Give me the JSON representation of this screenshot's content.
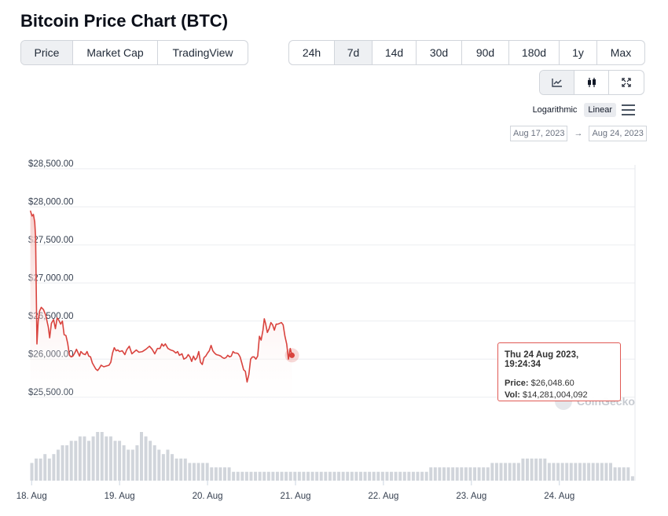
{
  "page_title": "Bitcoin Price Chart (BTC)",
  "view_tabs": [
    {
      "label": "Price",
      "active": true
    },
    {
      "label": "Market Cap",
      "active": false
    },
    {
      "label": "TradingView",
      "active": false
    }
  ],
  "range_tabs": [
    {
      "label": "24h",
      "active": false
    },
    {
      "label": "7d",
      "active": true
    },
    {
      "label": "14d",
      "active": false
    },
    {
      "label": "30d",
      "active": false
    },
    {
      "label": "90d",
      "active": false
    },
    {
      "label": "180d",
      "active": false
    },
    {
      "label": "1y",
      "active": false
    },
    {
      "label": "Max",
      "active": false
    }
  ],
  "tools": [
    {
      "icon": "line-chart-icon",
      "active": true
    },
    {
      "icon": "candlestick-icon",
      "active": false
    },
    {
      "icon": "fullscreen-icon",
      "active": false
    }
  ],
  "scale": {
    "logarithmic": "Logarithmic",
    "linear": "Linear",
    "selected": "Linear"
  },
  "date_range": {
    "from": "Aug 17, 2023",
    "arrow": "→",
    "to": "Aug 24, 2023"
  },
  "tooltip": {
    "date": "Thu 24 Aug 2023, 19:24:34",
    "price_label": "Price:",
    "price_value": "$26,048.60",
    "vol_label": "Vol:",
    "vol_value": "$14,281,004,092"
  },
  "watermark": "CoinGecko",
  "colors": {
    "line": "#d9433e",
    "area": "#fde8e7",
    "volume": "#d1d5db",
    "grid": "#eceef1",
    "tooltip_border": "#e05a55"
  },
  "chart_data": {
    "type": "line",
    "title": "Bitcoin Price Chart (BTC)",
    "xlabel": "",
    "ylabel": "",
    "y_ticks": [
      "$25,500.00",
      "$26,000.00",
      "$26,500.00",
      "$27,000.00",
      "$27,500.00",
      "$28,000.00",
      "$28,500.00"
    ],
    "y_tick_values": [
      25500,
      26000,
      26500,
      27000,
      27500,
      28000,
      28500
    ],
    "ylim": [
      25250,
      28550
    ],
    "x_ticks": [
      "18. Aug",
      "19. Aug",
      "20. Aug",
      "21. Aug",
      "22. Aug",
      "23. Aug",
      "24. Aug"
    ],
    "x_tick_days": [
      1,
      2,
      3,
      4,
      5,
      6,
      7
    ],
    "xlim": [
      0.98,
      7.86
    ],
    "grid": true,
    "series": [
      {
        "values": [
          [
            0.985,
            27950
          ],
          [
            1.005,
            27880
          ],
          [
            1.02,
            27900
          ],
          [
            1.035,
            27800
          ],
          [
            1.045,
            27600
          ],
          [
            1.06,
            26200
          ],
          [
            1.075,
            26500
          ],
          [
            1.09,
            26630
          ],
          [
            1.11,
            26680
          ],
          [
            1.135,
            26650
          ],
          [
            1.16,
            26580
          ],
          [
            1.19,
            26420
          ],
          [
            1.205,
            26280
          ],
          [
            1.225,
            26470
          ],
          [
            1.25,
            26520
          ],
          [
            1.27,
            26400
          ],
          [
            1.29,
            26540
          ],
          [
            1.31,
            26510
          ],
          [
            1.33,
            26460
          ],
          [
            1.35,
            26500
          ],
          [
            1.37,
            26320
          ],
          [
            1.39,
            26310
          ],
          [
            1.41,
            26210
          ],
          [
            1.43,
            26050
          ],
          [
            1.45,
            26030
          ],
          [
            1.47,
            26040
          ],
          [
            1.49,
            26080
          ],
          [
            1.51,
            26130
          ],
          [
            1.525,
            26090
          ],
          [
            1.545,
            26040
          ],
          [
            1.56,
            26100
          ],
          [
            1.585,
            26070
          ],
          [
            1.61,
            26060
          ],
          [
            1.63,
            26100
          ],
          [
            1.65,
            26040
          ],
          [
            1.67,
            26030
          ],
          [
            1.69,
            25950
          ],
          [
            1.71,
            25910
          ],
          [
            1.73,
            25870
          ],
          [
            1.75,
            25850
          ],
          [
            1.77,
            25880
          ],
          [
            1.79,
            25920
          ],
          [
            1.82,
            25900
          ],
          [
            1.85,
            25910
          ],
          [
            1.88,
            25920
          ],
          [
            1.9,
            25960
          ],
          [
            1.92,
            26080
          ],
          [
            1.94,
            26150
          ],
          [
            1.96,
            26110
          ],
          [
            1.98,
            26120
          ],
          [
            2.0,
            26100
          ],
          [
            2.03,
            26110
          ],
          [
            2.06,
            26060
          ],
          [
            2.08,
            26120
          ],
          [
            2.11,
            26170
          ],
          [
            2.14,
            26070
          ],
          [
            2.16,
            26090
          ],
          [
            2.19,
            26120
          ],
          [
            2.22,
            26090
          ],
          [
            2.26,
            26100
          ],
          [
            2.3,
            26130
          ],
          [
            2.34,
            26170
          ],
          [
            2.37,
            26130
          ],
          [
            2.4,
            26070
          ],
          [
            2.43,
            26140
          ],
          [
            2.46,
            26140
          ],
          [
            2.48,
            26200
          ],
          [
            2.5,
            26170
          ],
          [
            2.52,
            26200
          ],
          [
            2.55,
            26140
          ],
          [
            2.58,
            26120
          ],
          [
            2.61,
            26110
          ],
          [
            2.64,
            26080
          ],
          [
            2.66,
            26100
          ],
          [
            2.68,
            26050
          ],
          [
            2.71,
            26070
          ],
          [
            2.73,
            26000
          ],
          [
            2.76,
            26020
          ],
          [
            2.78,
            26060
          ],
          [
            2.8,
            26030
          ],
          [
            2.82,
            25970
          ],
          [
            2.84,
            26040
          ],
          [
            2.86,
            25990
          ],
          [
            2.88,
            26020
          ],
          [
            2.9,
            26100
          ],
          [
            2.92,
            25960
          ],
          [
            2.94,
            25930
          ],
          [
            2.96,
            26020
          ],
          [
            2.98,
            26040
          ],
          [
            3.0,
            26080
          ],
          [
            3.02,
            26110
          ],
          [
            3.04,
            26180
          ],
          [
            3.06,
            26110
          ],
          [
            3.08,
            26080
          ],
          [
            3.1,
            26060
          ],
          [
            3.13,
            26050
          ],
          [
            3.15,
            26040
          ],
          [
            3.17,
            26020
          ],
          [
            3.19,
            26010
          ],
          [
            3.21,
            26020
          ],
          [
            3.23,
            26050
          ],
          [
            3.25,
            26030
          ],
          [
            3.27,
            26040
          ],
          [
            3.29,
            26100
          ],
          [
            3.31,
            26080
          ],
          [
            3.33,
            26080
          ],
          [
            3.35,
            26070
          ],
          [
            3.37,
            26030
          ],
          [
            3.39,
            25950
          ],
          [
            3.41,
            25860
          ],
          [
            3.43,
            25840
          ],
          [
            3.45,
            25700
          ],
          [
            3.47,
            25800
          ],
          [
            3.49,
            26000
          ],
          [
            3.51,
            26030
          ],
          [
            3.53,
            26030
          ],
          [
            3.55,
            26000
          ],
          [
            3.57,
            26040
          ],
          [
            3.59,
            26300
          ],
          [
            3.61,
            26250
          ],
          [
            3.63,
            26380
          ],
          [
            3.645,
            26530
          ],
          [
            3.66,
            26470
          ],
          [
            3.68,
            26350
          ],
          [
            3.7,
            26400
          ],
          [
            3.72,
            26480
          ],
          [
            3.74,
            26450
          ],
          [
            3.76,
            26380
          ],
          [
            3.78,
            26460
          ],
          [
            3.8,
            26460
          ],
          [
            3.82,
            26470
          ],
          [
            3.84,
            26480
          ],
          [
            3.86,
            26450
          ],
          [
            3.88,
            26300
          ],
          [
            3.9,
            26200
          ],
          [
            3.92,
            26000
          ],
          [
            3.94,
            26140
          ],
          [
            3.96,
            26050
          ]
        ]
      }
    ],
    "volume_bars": [
      4,
      5,
      5,
      6,
      5,
      6,
      7,
      8,
      8,
      9,
      9,
      10,
      10,
      9,
      10,
      11,
      11,
      10,
      10,
      9,
      9,
      8,
      7,
      7,
      8,
      11,
      10,
      9,
      8,
      7,
      6,
      7,
      6,
      5,
      5,
      5,
      4,
      4,
      4,
      4,
      4,
      3,
      3,
      3,
      3,
      3,
      2,
      2,
      2,
      2,
      2,
      2,
      2,
      2,
      2,
      2,
      2,
      2,
      2,
      2,
      2,
      2,
      2,
      2,
      2,
      2,
      2,
      2,
      2,
      2,
      2,
      2,
      2,
      2,
      2,
      2,
      2,
      2,
      2,
      2,
      2,
      2,
      2,
      2,
      2,
      2,
      2,
      2,
      2,
      2,
      2,
      3,
      3,
      3,
      3,
      3,
      3,
      3,
      3,
      3,
      3,
      3,
      3,
      3,
      3,
      4,
      4,
      4,
      4,
      4,
      4,
      4,
      5,
      5,
      5,
      5,
      5,
      5,
      4,
      4,
      4,
      4,
      4,
      4,
      4,
      4,
      4,
      4,
      4,
      4,
      4,
      4,
      4,
      3,
      3,
      3,
      3,
      1
    ]
  }
}
